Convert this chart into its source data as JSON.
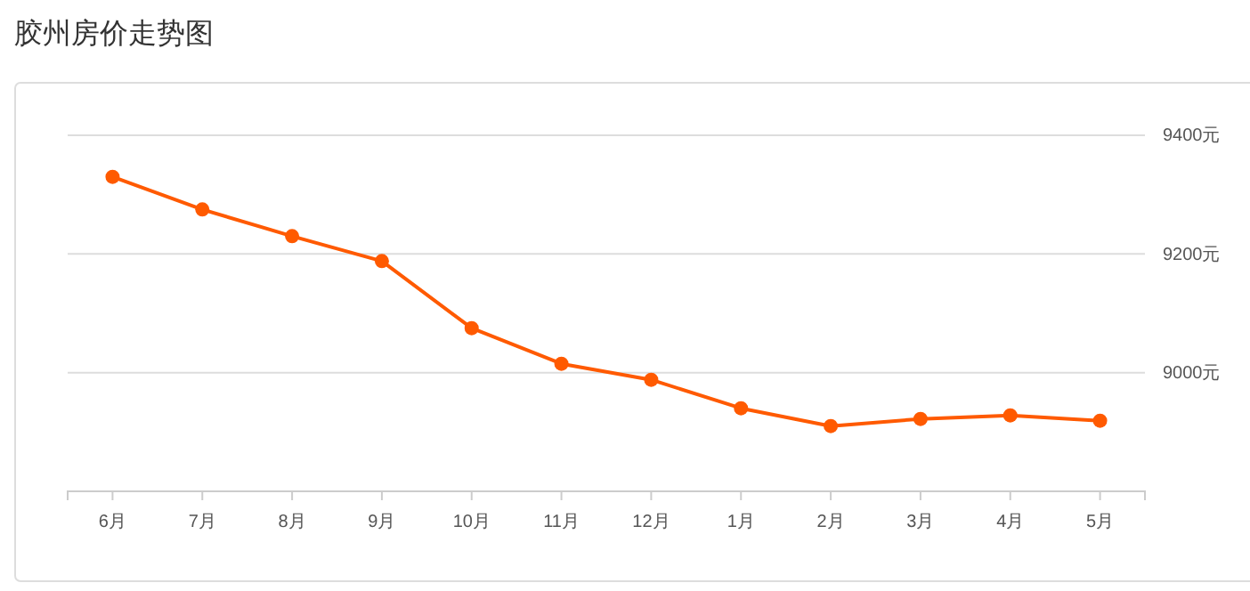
{
  "chart_data": {
    "type": "line",
    "title": "胶州房价走势图",
    "categories": [
      "6月",
      "7月",
      "8月",
      "9月",
      "10月",
      "11月",
      "12月",
      "1月",
      "2月",
      "3月",
      "4月",
      "5月"
    ],
    "series": [
      {
        "color": "#ff5a00",
        "values": [
          9330,
          9275,
          9230,
          9188,
          9075,
          9015,
          8988,
          8940,
          8910,
          8922,
          8928,
          8919
        ]
      }
    ],
    "ylim": [
      8800,
      9400
    ],
    "yticks": [
      {
        "value": 9000,
        "label": "9000元"
      },
      {
        "value": 9200,
        "label": "9200元"
      },
      {
        "value": 9400,
        "label": "9400元"
      }
    ],
    "grid": "y",
    "marker": "circle",
    "line_style": "solid"
  }
}
